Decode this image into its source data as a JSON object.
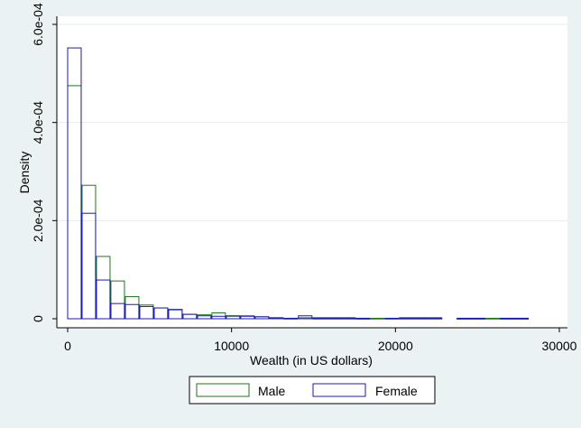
{
  "chart_data": {
    "type": "bar",
    "title": "",
    "xlabel": "Wealth (in US dollars)",
    "ylabel": "Density",
    "xlim": [
      -1000,
      30000
    ],
    "ylim": [
      0,
      0.00062
    ],
    "xticks": [
      0,
      10000,
      20000,
      30000
    ],
    "xtick_labels": [
      "0",
      "10000",
      "20000",
      "30000"
    ],
    "yticks": [
      0,
      0.0002,
      0.0004,
      0.0006
    ],
    "ytick_labels": [
      "0",
      "2.0e-04",
      "4.0e-04",
      "6.0e-04"
    ],
    "grid": true,
    "legend_position": "bottom",
    "series": [
      {
        "name": "Male",
        "color": "#1a7a1a",
        "bins": [
          {
            "x0": 0,
            "x1": 880,
            "y": 0.000475
          },
          {
            "x0": 880,
            "x1": 1760,
            "y": 0.000272
          },
          {
            "x0": 1760,
            "x1": 2640,
            "y": 0.000127
          },
          {
            "x0": 2640,
            "x1": 3520,
            "y": 7.7e-05
          },
          {
            "x0": 3520,
            "x1": 4400,
            "y": 4.5e-05
          },
          {
            "x0": 4400,
            "x1": 5280,
            "y": 2.8e-05
          },
          {
            "x0": 5280,
            "x1": 6160,
            "y": 2.2e-05
          },
          {
            "x0": 6160,
            "x1": 7040,
            "y": 1.8e-05
          },
          {
            "x0": 7040,
            "x1": 7920,
            "y": 9e-06
          },
          {
            "x0": 7920,
            "x1": 8800,
            "y": 8e-06
          },
          {
            "x0": 8800,
            "x1": 9680,
            "y": 1.2e-05
          },
          {
            "x0": 9680,
            "x1": 10560,
            "y": 5e-06
          },
          {
            "x0": 10560,
            "x1": 11440,
            "y": 6e-06
          },
          {
            "x0": 11440,
            "x1": 12320,
            "y": 4e-06
          },
          {
            "x0": 12320,
            "x1": 13200,
            "y": 2e-06
          },
          {
            "x0": 14080,
            "x1": 14960,
            "y": 2e-06
          },
          {
            "x0": 14960,
            "x1": 15840,
            "y": 1e-06
          },
          {
            "x0": 15840,
            "x1": 16720,
            "y": 1e-06
          },
          {
            "x0": 16720,
            "x1": 17600,
            "y": 1e-06
          },
          {
            "x0": 17600,
            "x1": 18480,
            "y": 1e-06
          },
          {
            "x0": 18480,
            "x1": 19360,
            "y": 1e-06
          },
          {
            "x0": 20240,
            "x1": 21120,
            "y": 1e-06
          },
          {
            "x0": 21120,
            "x1": 22000,
            "y": 1e-06
          },
          {
            "x0": 22000,
            "x1": 22880,
            "y": 1e-06
          },
          {
            "x0": 23760,
            "x1": 24640,
            "y": 1e-06
          },
          {
            "x0": 24640,
            "x1": 25520,
            "y": 1e-06
          },
          {
            "x0": 25520,
            "x1": 26400,
            "y": 1e-06
          },
          {
            "x0": 26400,
            "x1": 27280,
            "y": 1e-06
          },
          {
            "x0": 27280,
            "x1": 28160,
            "y": 1e-06
          }
        ]
      },
      {
        "name": "Female",
        "color": "#1a1ab4",
        "bins": [
          {
            "x0": 0,
            "x1": 880,
            "y": 0.000552
          },
          {
            "x0": 880,
            "x1": 1760,
            "y": 0.000215
          },
          {
            "x0": 1760,
            "x1": 2640,
            "y": 7.9e-05
          },
          {
            "x0": 2640,
            "x1": 3520,
            "y": 3.1e-05
          },
          {
            "x0": 3520,
            "x1": 4400,
            "y": 2.9e-05
          },
          {
            "x0": 4400,
            "x1": 5280,
            "y": 2.5e-05
          },
          {
            "x0": 5280,
            "x1": 6160,
            "y": 2.2e-05
          },
          {
            "x0": 6160,
            "x1": 7040,
            "y": 1.9e-05
          },
          {
            "x0": 7040,
            "x1": 7920,
            "y": 9e-06
          },
          {
            "x0": 7920,
            "x1": 8800,
            "y": 6e-06
          },
          {
            "x0": 8800,
            "x1": 9680,
            "y": 5e-06
          },
          {
            "x0": 9680,
            "x1": 10560,
            "y": 6e-06
          },
          {
            "x0": 10560,
            "x1": 11440,
            "y": 5e-06
          },
          {
            "x0": 11440,
            "x1": 12320,
            "y": 4e-06
          },
          {
            "x0": 12320,
            "x1": 13200,
            "y": 2e-06
          },
          {
            "x0": 13200,
            "x1": 14080,
            "y": 1e-06
          },
          {
            "x0": 14080,
            "x1": 14960,
            "y": 6e-06
          },
          {
            "x0": 14960,
            "x1": 15840,
            "y": 2e-06
          },
          {
            "x0": 15840,
            "x1": 16720,
            "y": 2e-06
          },
          {
            "x0": 16720,
            "x1": 17600,
            "y": 2e-06
          },
          {
            "x0": 17600,
            "x1": 18480,
            "y": 1e-06
          },
          {
            "x0": 19360,
            "x1": 20240,
            "y": 1e-06
          },
          {
            "x0": 20240,
            "x1": 21120,
            "y": 2e-06
          },
          {
            "x0": 21120,
            "x1": 22000,
            "y": 2e-06
          },
          {
            "x0": 22000,
            "x1": 22880,
            "y": 2e-06
          },
          {
            "x0": 23760,
            "x1": 24640,
            "y": 1e-06
          },
          {
            "x0": 24640,
            "x1": 25520,
            "y": 1e-06
          },
          {
            "x0": 26400,
            "x1": 27280,
            "y": 1e-06
          },
          {
            "x0": 27280,
            "x1": 28160,
            "y": 1e-06
          }
        ]
      }
    ]
  }
}
